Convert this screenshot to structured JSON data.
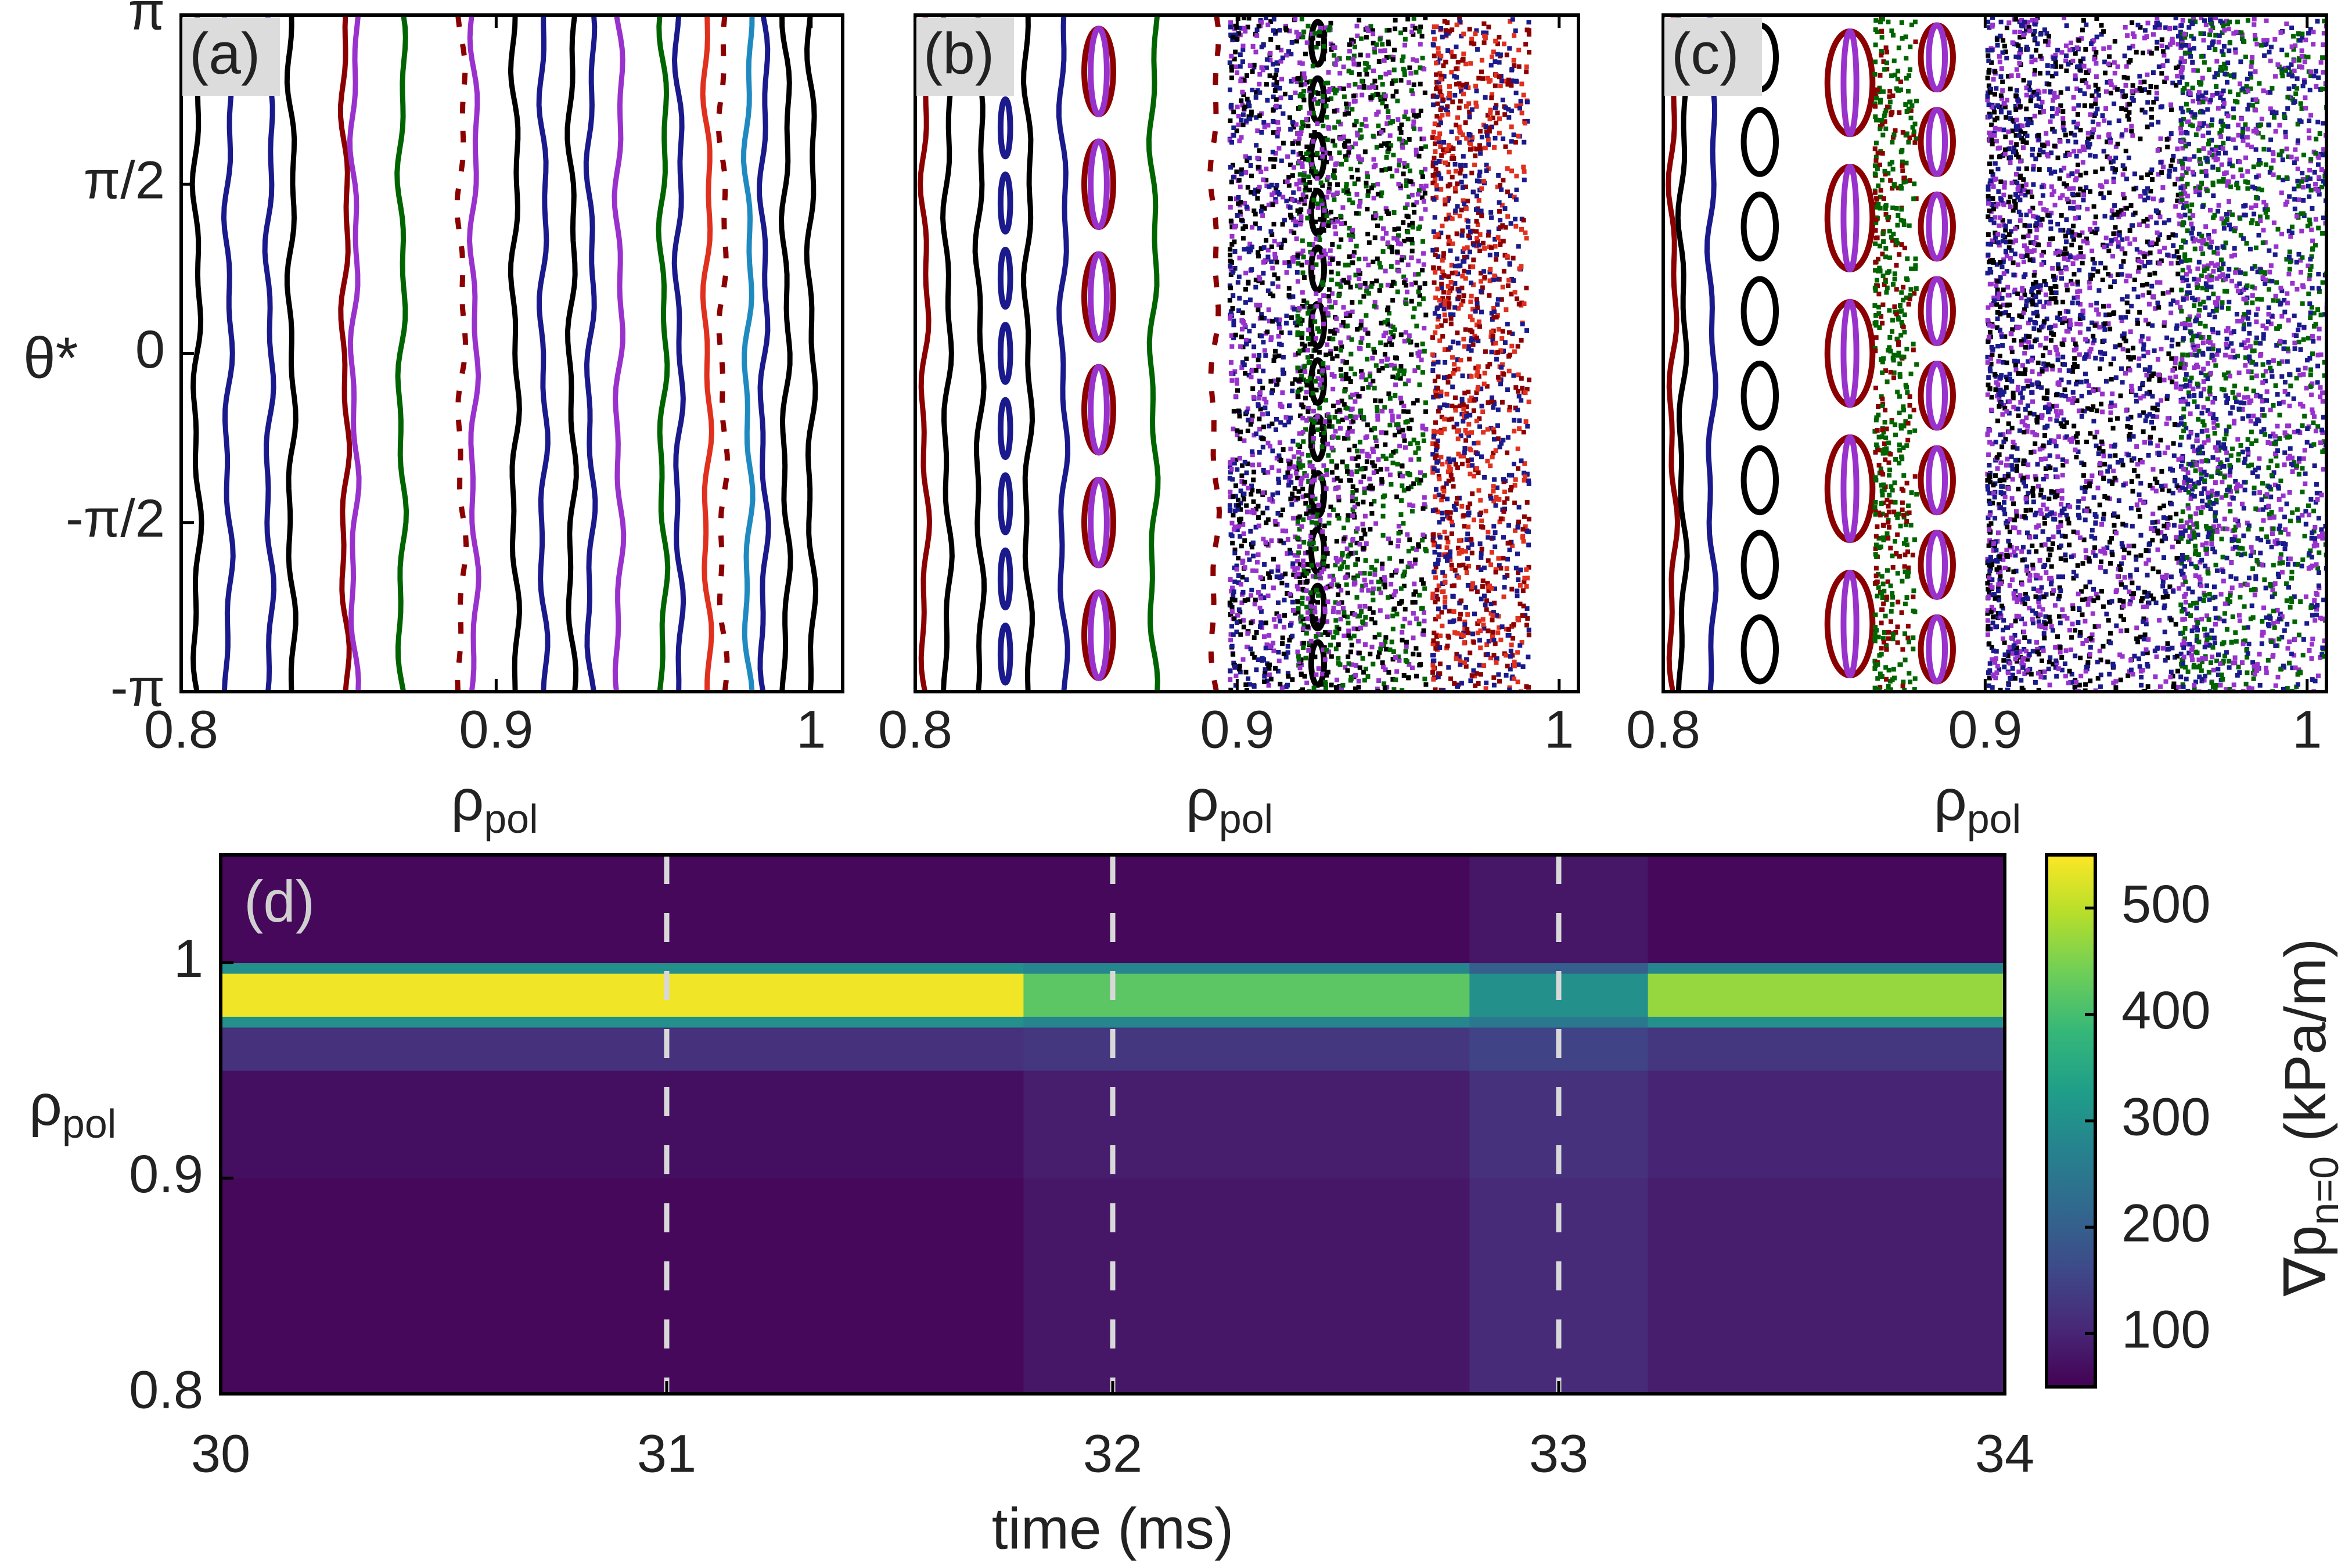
{
  "chart_data": [
    {
      "type": "poincare",
      "label": "(a)",
      "xlabel": "ρ",
      "xlabel_sub": "pol",
      "ylabel": "θ*",
      "xlim": [
        0.8,
        1.01
      ],
      "xticks": [
        0.8,
        0.9,
        1
      ],
      "ylim": [
        -3.1416,
        3.1416
      ],
      "yticks": [
        {
          "value": -3.1416,
          "label": "-π"
        },
        {
          "value": -1.5708,
          "label": "-π/2"
        },
        0,
        {
          "value": 1.5708,
          "label": "π/2"
        },
        {
          "value": 3.1416,
          "label": "π"
        }
      ],
      "surfaces": [
        {
          "x": 0.805,
          "color": "#000000"
        },
        {
          "x": 0.815,
          "color": "#1a1a8c"
        },
        {
          "x": 0.828,
          "color": "#1a1a8c"
        },
        {
          "x": 0.835,
          "color": "#000000"
        },
        {
          "x": 0.852,
          "color": "#8b0000"
        },
        {
          "x": 0.855,
          "color": "#9932cc"
        },
        {
          "x": 0.87,
          "color": "#006400"
        },
        {
          "x": 0.889,
          "color": "#8b0000",
          "dash": true
        },
        {
          "x": 0.893,
          "color": "#9932cc"
        },
        {
          "x": 0.906,
          "color": "#000000"
        },
        {
          "x": 0.915,
          "color": "#1a1a8c"
        },
        {
          "x": 0.924,
          "color": "#000000"
        },
        {
          "x": 0.93,
          "color": "#1a1a8c"
        },
        {
          "x": 0.939,
          "color": "#9932cc"
        },
        {
          "x": 0.953,
          "color": "#006400"
        },
        {
          "x": 0.958,
          "color": "#1a1a8c"
        },
        {
          "x": 0.967,
          "color": "#e0301e"
        },
        {
          "x": 0.972,
          "color": "#8b0000",
          "dash": true
        },
        {
          "x": 0.98,
          "color": "#1f8ac0"
        },
        {
          "x": 0.985,
          "color": "#1a1a8c"
        },
        {
          "x": 0.992,
          "color": "#000000"
        },
        {
          "x": 1.0,
          "color": "#000000"
        }
      ],
      "islands": [],
      "chaotic": []
    },
    {
      "type": "poincare",
      "label": "(b)",
      "xlabel": "ρ",
      "xlabel_sub": "pol",
      "xlim": [
        0.8,
        1.006
      ],
      "xticks": [
        0.8,
        0.9,
        1
      ],
      "ylim": [
        -3.1416,
        3.1416
      ],
      "surfaces": [
        {
          "x": 0.803,
          "color": "#8b0000"
        },
        {
          "x": 0.81,
          "color": "#000000"
        },
        {
          "x": 0.82,
          "color": "#000000"
        },
        {
          "x": 0.835,
          "color": "#000000"
        },
        {
          "x": 0.846,
          "color": "#1a1a8c"
        },
        {
          "x": 0.874,
          "color": "#006400"
        },
        {
          "x": 0.893,
          "color": "#8b0000",
          "dash": true
        }
      ],
      "islands": [
        {
          "x": 0.828,
          "n": 9,
          "width": 0.0015,
          "color": "#1a1a8c"
        },
        {
          "x": 0.857,
          "n": 6,
          "width": 0.0045,
          "color": "#8b0000"
        },
        {
          "x": 0.857,
          "n": 6,
          "width": 0.0025,
          "color": "#9932cc"
        },
        {
          "x": 0.925,
          "n": 12,
          "width": 0.002,
          "color": "#000000"
        }
      ],
      "chaotic": [
        {
          "x": [
            0.897,
            0.918
          ],
          "colors": [
            "#1a1a8c",
            "#9932cc",
            "#000000"
          ]
        },
        {
          "x": [
            0.918,
            0.958
          ],
          "colors": [
            "#006400",
            "#000000",
            "#9932cc"
          ]
        },
        {
          "x": [
            0.96,
            0.99
          ],
          "colors": [
            "#8b0000",
            "#e0301e",
            "#1a1a8c"
          ]
        }
      ]
    },
    {
      "type": "poincare",
      "label": "(c)",
      "xlabel": "ρ",
      "xlabel_sub": "pol",
      "xlim": [
        0.8,
        1.006
      ],
      "xticks": [
        0.8,
        0.9,
        1
      ],
      "ylim": [
        -3.1416,
        3.1416
      ],
      "surfaces": [
        {
          "x": 0.803,
          "color": "#8b0000"
        },
        {
          "x": 0.806,
          "color": "#000000"
        },
        {
          "x": 0.815,
          "color": "#1a1a8c"
        }
      ],
      "islands": [
        {
          "x": 0.83,
          "n": 8,
          "width": 0.005,
          "color": "#000000"
        },
        {
          "x": 0.858,
          "n": 5,
          "width": 0.007,
          "color": "#8b0000"
        },
        {
          "x": 0.858,
          "n": 5,
          "width": 0.002,
          "color": "#9932cc"
        },
        {
          "x": 0.885,
          "n": 8,
          "width": 0.005,
          "color": "#8b0000"
        },
        {
          "x": 0.885,
          "n": 8,
          "width": 0.0025,
          "color": "#9932cc"
        }
      ],
      "chaotic": [
        {
          "x": [
            0.865,
            0.878
          ],
          "colors": [
            "#006400",
            "#006400",
            "#8b0000"
          ]
        },
        {
          "x": [
            0.9,
            0.96
          ],
          "colors": [
            "#9932cc",
            "#1a1a8c",
            "#000000"
          ]
        },
        {
          "x": [
            0.96,
            1.006
          ],
          "colors": [
            "#9932cc",
            "#1a1a8c",
            "#006400"
          ]
        }
      ]
    },
    {
      "type": "heatmap",
      "label": "(d)",
      "xlabel": "time (ms)",
      "ylabel": "ρ",
      "ylabel_sub": "pol",
      "xlim": [
        30,
        34
      ],
      "xticks": [
        30,
        31,
        32,
        33,
        34
      ],
      "ylim": [
        0.8,
        1.05
      ],
      "yticks": [
        0.8,
        0.9,
        1
      ],
      "x_edges": [
        30,
        31.8,
        32.8,
        33.2,
        34
      ],
      "y_edges": [
        0.8,
        0.9,
        0.95,
        0.97,
        0.975,
        0.995,
        1.0,
        1.05
      ],
      "values": [
        [
          60,
          70,
          120,
          300,
          540,
          300,
          60
        ],
        [
          80,
          90,
          130,
          280,
          420,
          280,
          60
        ],
        [
          110,
          120,
          150,
          250,
          300,
          200,
          80
        ],
        [
          90,
          100,
          130,
          300,
          470,
          280,
          60
        ]
      ],
      "vlines": [
        31,
        32,
        33
      ],
      "clim": [
        50,
        550
      ],
      "cticks": [
        100,
        200,
        300,
        400,
        500
      ],
      "clabel": "∇p",
      "clabel_sub": "n=0",
      "clabel_rest": "(kPa/m)"
    }
  ]
}
